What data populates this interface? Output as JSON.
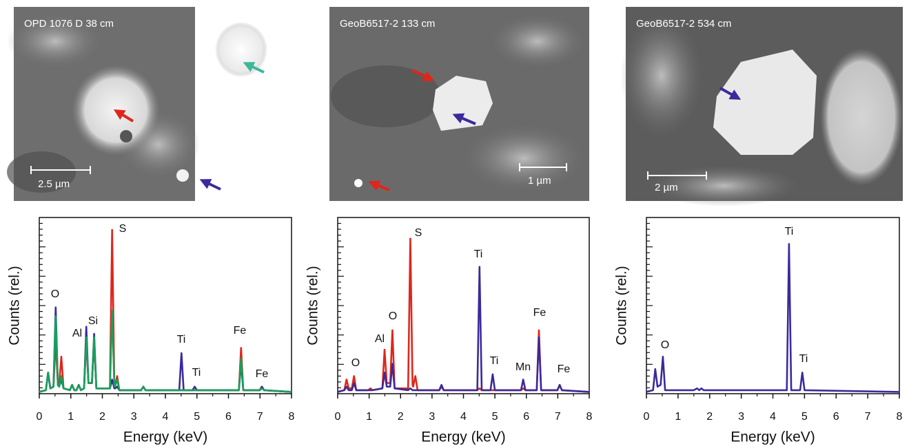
{
  "images": [
    {
      "label": "OPD 1076 D  38 cm",
      "scale": "2.5 µm"
    },
    {
      "label": "GeoB6517-2   133 cm",
      "scale": "1 µm"
    },
    {
      "label": "GeoB6517-2   534 cm",
      "scale": "2 µm"
    }
  ],
  "chart_data": [
    {
      "type": "line",
      "xlabel": "Energy (keV)",
      "ylabel": "Counts (rel.)",
      "xlim": [
        0,
        8
      ],
      "xticks": [
        0,
        1,
        2,
        3,
        4,
        5,
        6,
        7,
        8
      ],
      "ylim": [
        0,
        100
      ],
      "x": [
        0,
        0.21,
        0.28,
        0.35,
        0.45,
        0.52,
        0.59,
        0.63,
        0.7,
        0.77,
        0.97,
        1.04,
        1.11,
        1.18,
        1.25,
        1.32,
        1.42,
        1.49,
        1.56,
        1.67,
        1.74,
        1.81,
        2.24,
        2.31,
        2.38,
        2.4,
        2.47,
        2.54,
        3.23,
        3.3,
        3.37,
        4.44,
        4.51,
        4.58,
        4.86,
        4.93,
        5.0,
        6.33,
        6.4,
        6.47,
        6.99,
        7.06,
        7.13,
        8
      ],
      "series": [
        {
          "color": "#e0261b",
          "values": [
            1,
            2,
            12,
            3,
            4,
            30,
            5,
            5,
            21,
            3,
            2,
            5,
            2,
            2,
            5,
            2,
            3,
            30,
            6,
            6,
            30,
            3,
            3,
            93,
            5,
            4,
            10,
            2,
            2,
            4,
            2,
            2,
            2,
            2,
            2,
            2,
            2,
            2,
            26,
            2,
            2,
            4,
            2,
            1
          ]
        },
        {
          "color": "#3a2a9c",
          "values": [
            1,
            2,
            12,
            3,
            4,
            49,
            5,
            4,
            8,
            3,
            2,
            5,
            2,
            2,
            5,
            2,
            3,
            38,
            6,
            6,
            34,
            3,
            3,
            8,
            3,
            3,
            4,
            2,
            2,
            4,
            2,
            2,
            23,
            2,
            2,
            4,
            2,
            2,
            17,
            2,
            2,
            4,
            2,
            1
          ]
        },
        {
          "color": "#17a05a",
          "values": [
            1,
            2,
            12,
            3,
            4,
            44,
            5,
            4,
            10,
            3,
            2,
            5,
            2,
            2,
            5,
            2,
            3,
            32,
            6,
            6,
            32,
            3,
            3,
            47,
            5,
            4,
            8,
            2,
            2,
            4,
            2,
            2,
            2,
            2,
            2,
            2,
            2,
            2,
            20,
            2,
            2,
            3,
            2,
            1
          ]
        }
      ],
      "annotations": [
        "O",
        "Al",
        "Si",
        "S",
        "Ti",
        "Ti",
        "Fe",
        "Fe"
      ]
    },
    {
      "type": "line",
      "xlabel": "Energy (keV)",
      "ylabel": "Counts (rel.)",
      "xlim": [
        0,
        8
      ],
      "xticks": [
        0,
        1,
        2,
        3,
        4,
        5,
        6,
        7,
        8
      ],
      "ylim": [
        0,
        100
      ],
      "x": [
        0,
        0.21,
        0.28,
        0.35,
        0.45,
        0.52,
        0.59,
        0.97,
        1.04,
        1.11,
        1.42,
        1.49,
        1.56,
        1.67,
        1.74,
        1.81,
        2.24,
        2.31,
        2.38,
        2.4,
        2.47,
        2.54,
        3.23,
        3.3,
        3.37,
        4.44,
        4.51,
        4.58,
        4.86,
        4.93,
        5.0,
        5.83,
        5.9,
        5.97,
        6.33,
        6.4,
        6.47,
        6.99,
        7.06,
        7.13,
        8
      ],
      "series": [
        {
          "color": "#e0261b",
          "values": [
            1,
            2,
            8,
            3,
            3,
            10,
            2,
            2,
            3,
            2,
            3,
            25,
            6,
            6,
            36,
            3,
            3,
            88,
            5,
            4,
            10,
            2,
            2,
            4,
            2,
            2,
            3,
            2,
            2,
            2,
            2,
            2,
            3,
            2,
            2,
            36,
            2,
            2,
            5,
            2,
            1
          ]
        },
        {
          "color": "#3a2a9c",
          "values": [
            1,
            2,
            4,
            2,
            2,
            6,
            2,
            2,
            2,
            2,
            3,
            12,
            4,
            4,
            17,
            3,
            2,
            3,
            2,
            2,
            2,
            2,
            2,
            5,
            2,
            2,
            72,
            2,
            2,
            11,
            2,
            2,
            8,
            2,
            2,
            32,
            2,
            2,
            5,
            2,
            1
          ]
        }
      ],
      "annotations": [
        "O",
        "Al",
        "O",
        "S",
        "Ti",
        "Ti",
        "Mn",
        "Fe",
        "Fe"
      ]
    },
    {
      "type": "line",
      "xlabel": "Energy (keV)",
      "ylabel": "Counts (rel.)",
      "xlim": [
        0,
        8
      ],
      "xticks": [
        0,
        1,
        2,
        3,
        4,
        5,
        6,
        7,
        8
      ],
      "ylim": [
        0,
        100
      ],
      "x": [
        0,
        0.21,
        0.28,
        0.35,
        0.45,
        0.52,
        0.59,
        1.5,
        1.6,
        1.67,
        1.74,
        1.81,
        4.44,
        4.51,
        4.58,
        4.86,
        4.93,
        5.0,
        8
      ],
      "series": [
        {
          "color": "#3a2a9c",
          "values": [
            1,
            2,
            14,
            4,
            5,
            21,
            2,
            2,
            3,
            2,
            3,
            2,
            2,
            85,
            2,
            2,
            12,
            2,
            1
          ]
        }
      ],
      "annotations": [
        "O",
        "Ti",
        "Ti"
      ]
    }
  ]
}
